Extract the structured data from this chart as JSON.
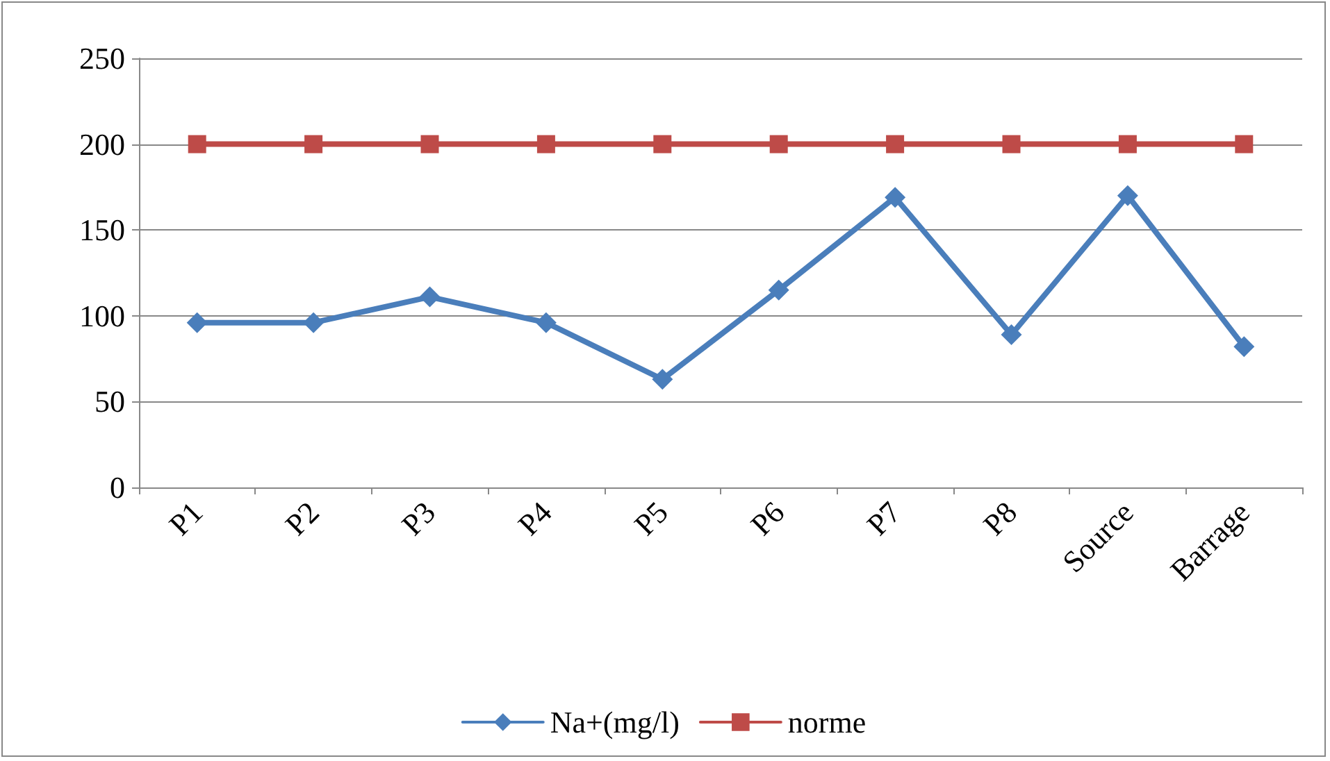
{
  "chart_data": {
    "type": "line",
    "categories": [
      "P1",
      "P2",
      "P3",
      "P4",
      "P5",
      "P6",
      "P7",
      "P8",
      "Source",
      "Barrage"
    ],
    "series": [
      {
        "name": "Na+(mg/l)",
        "color": "#4a7ebb",
        "marker": "diamond",
        "values": [
          96,
          96,
          111,
          96,
          63,
          115,
          169,
          89,
          170,
          82
        ]
      },
      {
        "name": "norme",
        "color": "#be4b48",
        "marker": "square",
        "values": [
          200,
          200,
          200,
          200,
          200,
          200,
          200,
          200,
          200,
          200
        ]
      }
    ],
    "ylim": [
      0,
      250
    ],
    "yticks": [
      0,
      50,
      100,
      150,
      200,
      250
    ],
    "grid": "y",
    "legend": "bottom",
    "line_style": "solid"
  }
}
